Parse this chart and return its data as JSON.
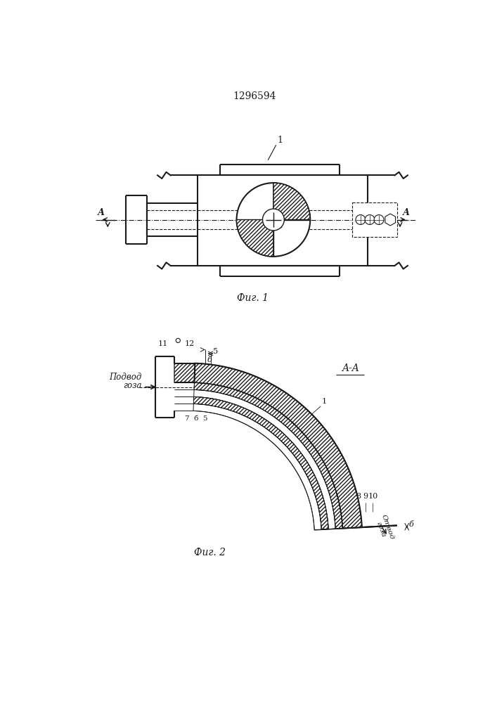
{
  "title": "1296594",
  "fig1_label": "Фиг. 1",
  "fig2_label": "Фиг. 2",
  "aa_label": "A-A",
  "bg": "#ffffff",
  "lc": "#1a1a1a"
}
